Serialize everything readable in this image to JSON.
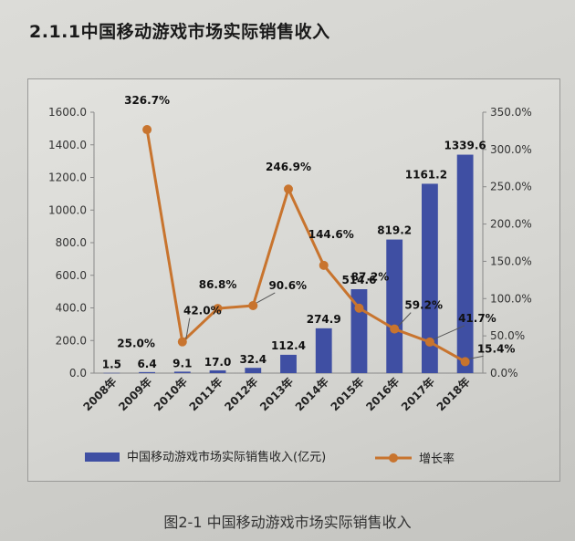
{
  "section_title": "2.1.1中国移动游戏市场实际销售收入",
  "caption": "图2-1  中国移动游戏市场实际销售收入",
  "chart_data": {
    "type": "bar",
    "title": "",
    "categories": [
      "2008年",
      "2009年",
      "2010年",
      "2011年",
      "2012年",
      "2013年",
      "2014年",
      "2015年",
      "2016年",
      "2017年",
      "2018年"
    ],
    "series": [
      {
        "name": "中国移动游戏市场实际销售收入(亿元)",
        "type": "bar",
        "axis": "left",
        "color": "#3f4fa3",
        "values": [
          1.5,
          6.4,
          9.1,
          17.0,
          32.4,
          112.4,
          274.9,
          514.6,
          819.2,
          1161.2,
          1339.6
        ],
        "labels": [
          "1.5",
          "6.4",
          "9.1",
          "17.0",
          "32.4",
          "112.4",
          "274.9",
          "514.6",
          "819.2",
          "1161.2",
          "1339.6"
        ]
      },
      {
        "name": "增长率",
        "type": "line",
        "axis": "right",
        "color": "#c8742e",
        "values": [
          null,
          326.7,
          42.0,
          86.8,
          90.6,
          246.9,
          144.6,
          87.2,
          59.2,
          41.7,
          15.4
        ],
        "labels": [
          "",
          "326.7%",
          "42.0%",
          "86.8%",
          "90.6%",
          "246.9%",
          "144.6%",
          "87.2%",
          "59.2%",
          "41.7%",
          "15.4%"
        ]
      }
    ],
    "stray_labels": [
      "25.0%"
    ],
    "y_left": {
      "min": 0,
      "max": 1600,
      "ticks": [
        "0.0",
        "200.0",
        "400.0",
        "600.0",
        "800.0",
        "1000.0",
        "1200.0",
        "1400.0",
        "1600.0"
      ]
    },
    "y_right": {
      "min": 0,
      "max": 350,
      "ticks": [
        "0.0%",
        "50.0%",
        "100.0%",
        "150.0%",
        "200.0%",
        "250.0%",
        "300.0%",
        "350.0%"
      ]
    },
    "grid": false,
    "legend_position": "bottom"
  }
}
